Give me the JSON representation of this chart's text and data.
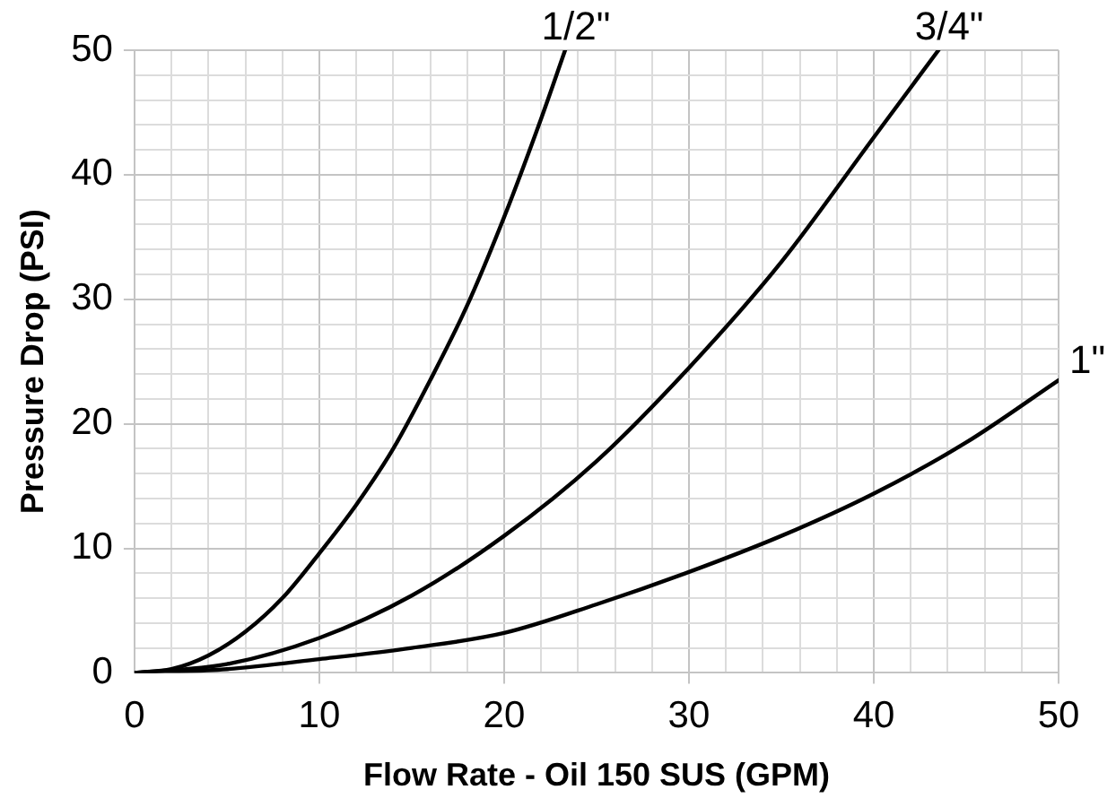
{
  "chart_data": {
    "type": "line",
    "xlabel": "Flow Rate - Oil 150 SUS (GPM)",
    "ylabel": "Pressure Drop (PSI)",
    "series": [
      {
        "name": "1/2\"",
        "color": "#000000",
        "x": [
          0,
          2,
          4,
          6,
          8,
          10,
          12,
          14,
          16,
          18,
          20,
          22,
          23.3
        ],
        "values": [
          0,
          0.3,
          1.4,
          3.3,
          6,
          9.6,
          13.5,
          18,
          23.5,
          29.5,
          36.6,
          44.5,
          50
        ]
      },
      {
        "name": "3/4\"",
        "color": "#000000",
        "x": [
          0,
          5,
          10,
          15,
          20,
          25,
          30,
          35,
          40,
          43.5
        ],
        "values": [
          0,
          0.7,
          2.8,
          6.2,
          11,
          17,
          24.5,
          33,
          43,
          50
        ]
      },
      {
        "name": "1\"",
        "color": "#000000",
        "x": [
          0,
          5,
          10,
          15,
          20,
          25,
          30,
          35,
          40,
          45,
          50
        ],
        "values": [
          0,
          0.3,
          1.1,
          2,
          3.2,
          5.5,
          8.1,
          11,
          14.4,
          18.5,
          23.5
        ]
      }
    ],
    "xlim": [
      0,
      50
    ],
    "ylim": [
      0,
      50
    ],
    "xticks": [
      0,
      {
        "value": 2,
        "label": null
      },
      {
        "value": 4,
        "label": null
      },
      {
        "value": 6,
        "label": null
      },
      {
        "value": 8,
        "label": null
      },
      10,
      {
        "value": 12,
        "label": null
      },
      {
        "value": 14,
        "label": null
      },
      {
        "value": 16,
        "label": null
      },
      {
        "value": 18,
        "label": null
      },
      20,
      {
        "value": 22,
        "label": null
      },
      {
        "value": 24,
        "label": null
      },
      {
        "value": 26,
        "label": null
      },
      {
        "value": 28,
        "label": null
      },
      30,
      {
        "value": 32,
        "label": null
      },
      {
        "value": 34,
        "label": null
      },
      {
        "value": 36,
        "label": null
      },
      {
        "value": 38,
        "label": null
      },
      40,
      {
        "value": 42,
        "label": null
      },
      {
        "value": 44,
        "label": null
      },
      {
        "value": 46,
        "label": null
      },
      {
        "value": 48,
        "label": null
      },
      50
    ],
    "yticks": [
      0,
      {
        "value": 2,
        "label": null
      },
      {
        "value": 4,
        "label": null
      },
      {
        "value": 6,
        "label": null
      },
      {
        "value": 8,
        "label": null
      },
      10,
      {
        "value": 12,
        "label": null
      },
      {
        "value": 14,
        "label": null
      },
      {
        "value": 16,
        "label": null
      },
      {
        "value": 18,
        "label": null
      },
      20,
      {
        "value": 22,
        "label": null
      },
      {
        "value": 24,
        "label": null
      },
      {
        "value": 26,
        "label": null
      },
      {
        "value": 28,
        "label": null
      },
      30,
      {
        "value": 32,
        "label": null
      },
      {
        "value": 34,
        "label": null
      },
      {
        "value": 36,
        "label": null
      },
      {
        "value": 38,
        "label": null
      },
      40,
      {
        "value": 42,
        "label": null
      },
      {
        "value": 44,
        "label": null
      },
      {
        "value": 46,
        "label": null
      },
      {
        "value": 48,
        "label": null
      },
      50
    ],
    "grid": true,
    "legend": false,
    "marker": "none",
    "line_style": "solid"
  }
}
